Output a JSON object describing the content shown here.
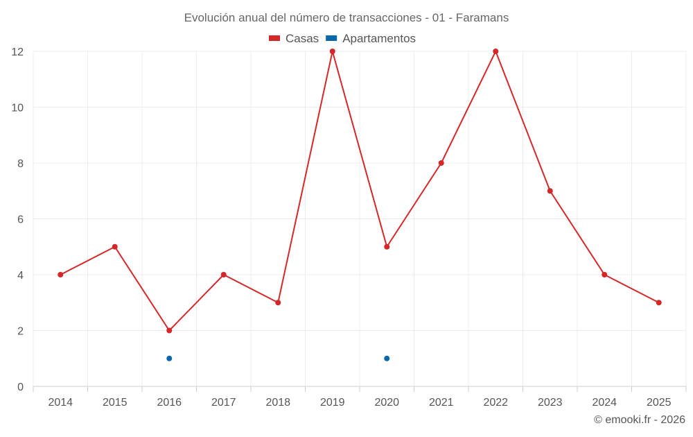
{
  "chart_data": {
    "type": "line",
    "title": "Evolución anual del número de transacciones - 01 - Faramans",
    "categories": [
      "2014",
      "2015",
      "2016",
      "2017",
      "2018",
      "2019",
      "2020",
      "2021",
      "2022",
      "2023",
      "2024",
      "2025"
    ],
    "series": [
      {
        "name": "Casas",
        "color": "#d62728",
        "values": [
          4,
          5,
          2,
          4,
          3,
          12,
          5,
          8,
          12,
          7,
          4,
          3
        ]
      },
      {
        "name": "Apartamentos",
        "color": "#0868ac",
        "values": [
          null,
          null,
          1,
          null,
          null,
          null,
          1,
          null,
          null,
          null,
          null,
          null
        ]
      }
    ],
    "xlabel": "",
    "ylabel": "",
    "ylim": [
      0,
      12
    ],
    "yticks": [
      "0",
      "2",
      "4",
      "6",
      "8",
      "10",
      "12"
    ],
    "grid": true,
    "legend_position": "top-center",
    "credit": "© emooki.fr - 2026"
  }
}
